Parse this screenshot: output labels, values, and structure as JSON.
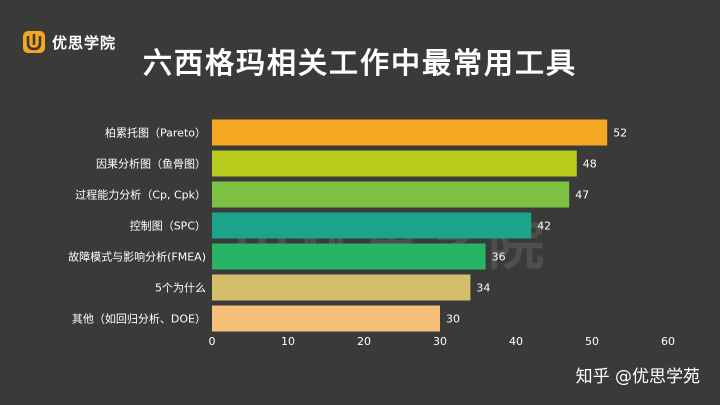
{
  "brand": {
    "name": "优思学院",
    "accent": "#f5a623"
  },
  "credit": "知乎 @优思学苑",
  "chart_data": {
    "type": "bar",
    "orientation": "horizontal",
    "title": "六西格玛相关工作中最常用工具",
    "categories": [
      "柏累托图（Pareto）",
      "因果分析图（鱼骨图）",
      "过程能力分析（Cp, Cpk）",
      "控制图（SPC）",
      "故障模式与影响分析(FMEA)",
      "5个为什么",
      "其他（如回归分析、DOE）"
    ],
    "values": [
      52,
      48,
      47,
      42,
      36,
      34,
      30
    ],
    "colors": [
      "#f5a623",
      "#b8cc1e",
      "#7cc142",
      "#1aa58a",
      "#27b565",
      "#d6bf6c",
      "#f7c07a"
    ],
    "xlim": [
      0,
      60
    ],
    "xticks": [
      0,
      10,
      20,
      30,
      40,
      50,
      60
    ],
    "grid": false,
    "legend": "none"
  }
}
